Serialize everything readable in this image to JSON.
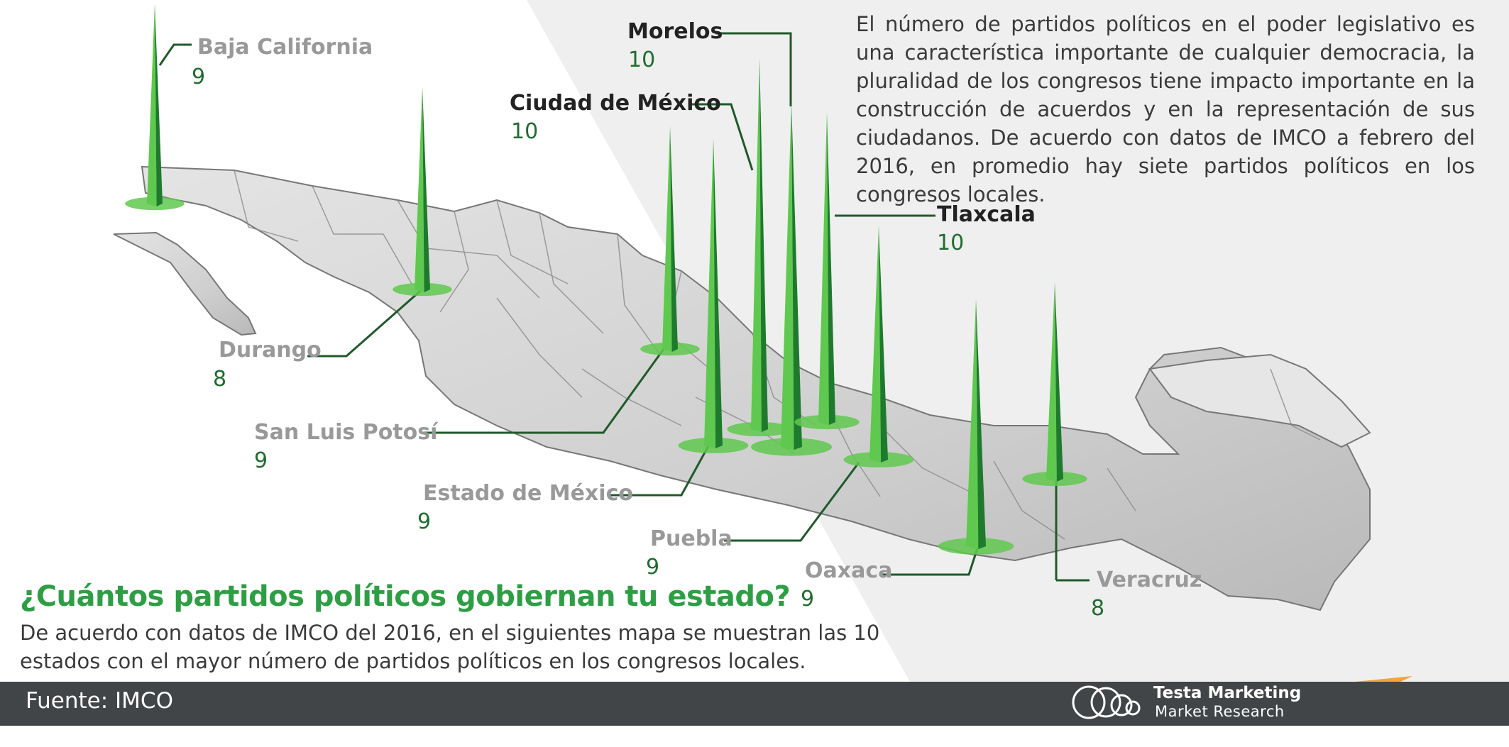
{
  "description": "El número de partidos políticos en el poder legislativo es una característica importante de cualquier democracia, la pluralidad de los congresos tiene impacto importante en la construcción de acuerdos y en la representación de sus ciudadanos. De acuerdo con datos de IMCO a febrero del 2016, en promedio hay siete partidos políticos en los congresos locales.",
  "title": "¿Cuántos partidos políticos gobiernan tu estado?",
  "subtitle": "De acuerdo con datos de IMCO del 2016, en el siguientes mapa se muestran las 10 estados con el mayor número de partidos políticos en los congresos locales.",
  "source": "Fuente: IMCO",
  "brand": {
    "name": "Testa Marketing",
    "tagline": "Market Research"
  },
  "colors": {
    "title_green": "#2e9e45",
    "value_green": "#1f6d2e",
    "spike_light": "#5fc84e",
    "spike_dark": "#1e7a2c",
    "footer_bar": "#424548",
    "brand_orange": "#f4a23c"
  },
  "states": [
    {
      "name": "Baja California",
      "value": "9",
      "highlight": false
    },
    {
      "name": "Durango",
      "value": "8",
      "highlight": false
    },
    {
      "name": "San Luis Potosí",
      "value": "9",
      "highlight": false
    },
    {
      "name": "Estado de México",
      "value": "9",
      "highlight": false
    },
    {
      "name": "Puebla",
      "value": "9",
      "highlight": false
    },
    {
      "name": "Oaxaca",
      "value": "9",
      "highlight": false
    },
    {
      "name": "Veracruz",
      "value": "8",
      "highlight": false
    },
    {
      "name": "Morelos",
      "value": "10",
      "highlight": true
    },
    {
      "name": "Ciudad de México",
      "value": "10",
      "highlight": true
    },
    {
      "name": "Tlaxcala",
      "value": "10",
      "highlight": true
    }
  ]
}
